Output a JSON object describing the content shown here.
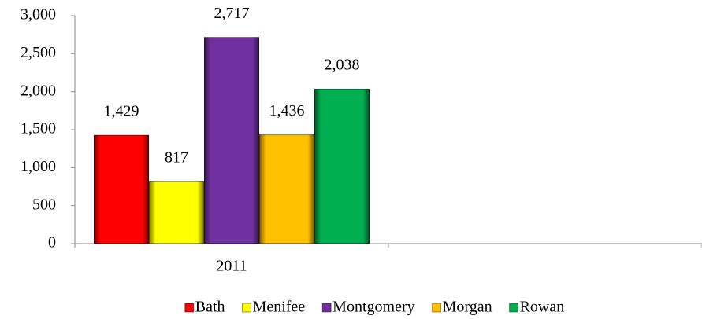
{
  "chart_data": {
    "type": "bar",
    "categories": [
      "2011",
      null
    ],
    "series": [
      {
        "name": "Bath",
        "color": "#ff0000",
        "values": [
          1429,
          null
        ],
        "value_labels": [
          "1,429",
          null
        ]
      },
      {
        "name": "Menifee",
        "color": "#ffff00",
        "values": [
          817,
          null
        ],
        "value_labels": [
          "817",
          null
        ]
      },
      {
        "name": "Montgomery",
        "color": "#7030a0",
        "values": [
          2717,
          null
        ],
        "value_labels": [
          "2,717",
          null
        ]
      },
      {
        "name": "Morgan",
        "color": "#ffc000",
        "values": [
          1436,
          null
        ],
        "value_labels": [
          "1,436",
          null
        ]
      },
      {
        "name": "Rowan",
        "color": "#00b050",
        "values": [
          2038,
          null
        ],
        "value_labels": [
          "2,038",
          null
        ]
      }
    ],
    "ylim": [
      0,
      3000
    ],
    "yticks": [
      0,
      500,
      {
        "value": 1000,
        "label": "1,000"
      },
      {
        "value": 1500,
        "label": "1,500"
      },
      {
        "value": 2000,
        "label": "2,000"
      },
      {
        "value": 2500,
        "label": "2,500"
      },
      {
        "value": 3000,
        "label": "3,000"
      }
    ],
    "legend": "bottom"
  }
}
